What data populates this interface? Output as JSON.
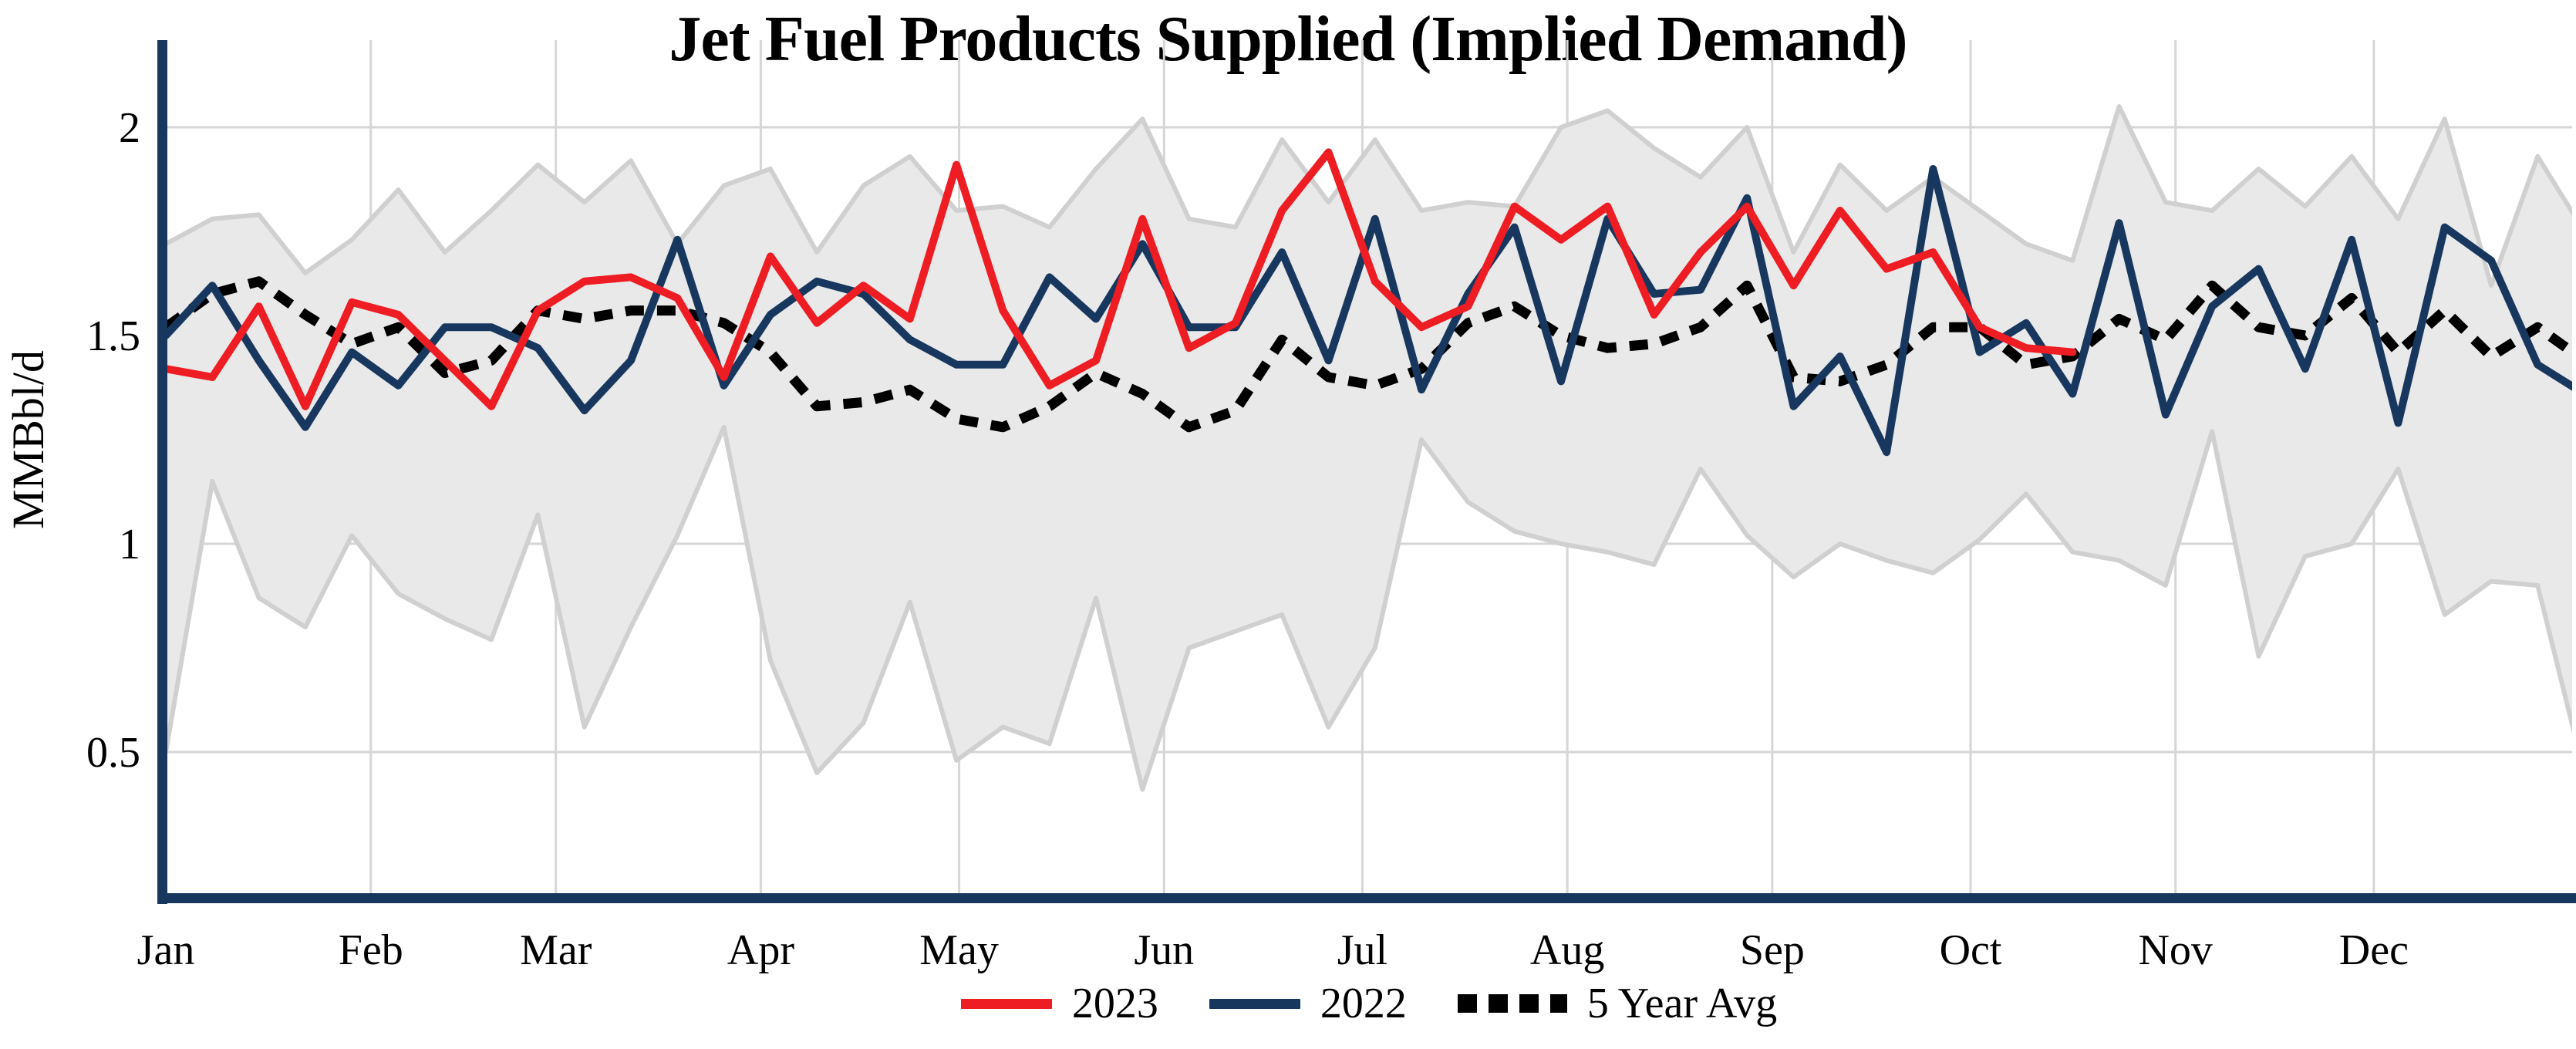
{
  "page": {
    "background": "#ffffff"
  },
  "chart_data": {
    "type": "line",
    "title": "Jet Fuel Products Supplied (Implied Demand)",
    "ylabel": "MMBbl/d",
    "xlabel": "",
    "grid": true,
    "ylim": [
      0.15,
      2.2
    ],
    "yticks": [
      {
        "label": "2",
        "value": 2.0
      },
      {
        "label": "1.5",
        "value": 1.5
      },
      {
        "label": "1",
        "value": 1.0
      },
      {
        "label": "0.5",
        "value": 0.5
      }
    ],
    "x_tick_labels": [
      "Jan",
      "Feb",
      "Mar",
      "Apr",
      "May",
      "Jun",
      "Jul",
      "Aug",
      "Sep",
      "Oct",
      "Nov",
      "Dec"
    ],
    "x_unit": "weekly points, Jan through Dec",
    "legend_position": "bottom-center",
    "colors": {
      "red_2023": "#ee1c23",
      "navy_2022": "#17375e",
      "five_year_avg": "#000000",
      "band_fill": "#e9e9e9",
      "band_edge": "#d0d0d0",
      "gridline": "#d6d6d6",
      "axis_spine": "#17375e"
    },
    "band": {
      "name": "5-year range",
      "top": [
        1.72,
        1.78,
        1.79,
        1.65,
        1.73,
        1.85,
        1.7,
        1.8,
        1.91,
        1.82,
        1.92,
        1.72,
        1.86,
        1.9,
        1.7,
        1.86,
        1.93,
        1.8,
        1.81,
        1.76,
        1.9,
        2.02,
        1.78,
        1.76,
        1.97,
        1.82,
        1.97,
        1.8,
        1.82,
        1.81,
        2.0,
        2.04,
        1.95,
        1.88,
        2.0,
        1.7,
        1.91,
        1.8,
        1.88,
        1.8,
        1.72,
        1.68,
        2.05,
        1.82,
        1.8,
        1.9,
        1.81,
        1.93,
        1.78,
        2.02,
        1.62,
        1.93,
        1.75
      ],
      "bottom": [
        0.5,
        1.15,
        0.87,
        0.8,
        1.02,
        0.88,
        0.82,
        0.77,
        1.07,
        0.56,
        0.8,
        1.02,
        1.28,
        0.72,
        0.45,
        0.57,
        0.86,
        0.48,
        0.56,
        0.52,
        0.87,
        0.41,
        0.75,
        0.79,
        0.83,
        0.56,
        0.75,
        1.25,
        1.1,
        1.03,
        1.0,
        0.98,
        0.95,
        1.18,
        1.02,
        0.92,
        1.0,
        0.96,
        0.93,
        1.01,
        1.12,
        0.98,
        0.96,
        0.9,
        1.27,
        0.73,
        0.97,
        1.0,
        1.18,
        0.83,
        0.91,
        0.9,
        0.45
      ]
    },
    "series": [
      {
        "name": "2023",
        "color": "#ee1c23",
        "style": "solid",
        "values": [
          1.42,
          1.4,
          1.57,
          1.33,
          1.58,
          1.55,
          1.44,
          1.33,
          1.56,
          1.63,
          1.64,
          1.59,
          1.4,
          1.69,
          1.53,
          1.62,
          1.54,
          1.91,
          1.56,
          1.38,
          1.44,
          1.78,
          1.47,
          1.53,
          1.8,
          1.94,
          1.63,
          1.52,
          1.57,
          1.81,
          1.73,
          1.81,
          1.55,
          1.7,
          1.81,
          1.62,
          1.8,
          1.66,
          1.7,
          1.52,
          1.47,
          1.46
        ]
      },
      {
        "name": "2022",
        "color": "#17375e",
        "style": "solid",
        "values": [
          1.5,
          1.62,
          1.44,
          1.28,
          1.46,
          1.38,
          1.52,
          1.52,
          1.47,
          1.32,
          1.44,
          1.73,
          1.38,
          1.55,
          1.63,
          1.6,
          1.49,
          1.43,
          1.43,
          1.64,
          1.54,
          1.72,
          1.52,
          1.52,
          1.7,
          1.44,
          1.78,
          1.37,
          1.6,
          1.76,
          1.39,
          1.78,
          1.6,
          1.61,
          1.83,
          1.33,
          1.45,
          1.22,
          1.9,
          1.46,
          1.53,
          1.36,
          1.77,
          1.31,
          1.57,
          1.66,
          1.42,
          1.73,
          1.29,
          1.76,
          1.68,
          1.43,
          1.36
        ]
      },
      {
        "name": "5 Year Avg",
        "color": "#000000",
        "style": "dashed",
        "values": [
          1.52,
          1.6,
          1.63,
          1.55,
          1.48,
          1.52,
          1.41,
          1.44,
          1.56,
          1.54,
          1.56,
          1.56,
          1.53,
          1.46,
          1.33,
          1.34,
          1.37,
          1.3,
          1.28,
          1.33,
          1.41,
          1.36,
          1.28,
          1.32,
          1.49,
          1.4,
          1.38,
          1.42,
          1.53,
          1.57,
          1.5,
          1.47,
          1.48,
          1.52,
          1.62,
          1.4,
          1.39,
          1.43,
          1.52,
          1.52,
          1.43,
          1.45,
          1.54,
          1.49,
          1.62,
          1.52,
          1.5,
          1.59,
          1.46,
          1.56,
          1.45,
          1.52,
          1.44
        ]
      }
    ]
  },
  "legend": {
    "items": [
      {
        "label": "2023",
        "color": "#ee1c23",
        "swatch": "line"
      },
      {
        "label": "2022",
        "color": "#17375e",
        "swatch": "line"
      },
      {
        "label": "5 Year Avg",
        "color": "#000000",
        "swatch": "dotted"
      }
    ]
  }
}
